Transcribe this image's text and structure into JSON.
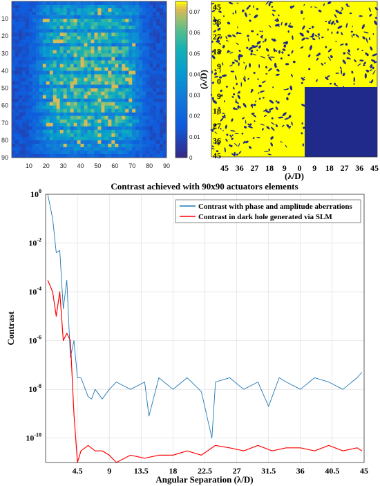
{
  "chart_data": [
    {
      "type": "heatmap",
      "title": "",
      "xlabel": "",
      "ylabel": "",
      "rows": 90,
      "cols": 90,
      "xticks": [
        "10",
        "20",
        "30",
        "40",
        "50",
        "60",
        "70",
        "80",
        "90"
      ],
      "yticks": [
        "10",
        "20",
        "30",
        "40",
        "50",
        "60",
        "70",
        "80",
        "90"
      ],
      "colorbar": {
        "ticks": [
          "0.07",
          "0.06",
          "0.05",
          "0.04",
          "0.03",
          "0.02",
          "0.01",
          "0"
        ],
        "range": [
          0,
          0.075
        ]
      },
      "colormap": "parula",
      "pattern": "bright band between columns ~15 and ~80 with alternating horizontal striations; values highest (~0.07) near center"
    },
    {
      "type": "heatmap",
      "title": "",
      "xlabel": "(λ/D)",
      "ylabel": "(λ/D)",
      "xticks": [
        "45",
        "36",
        "27",
        "18",
        "9",
        "0",
        "9",
        "18",
        "27",
        "36",
        "45"
      ],
      "yticks": [
        "45",
        "36",
        "27",
        "18",
        "9",
        "0",
        "9",
        "18",
        "27",
        "36",
        "45"
      ],
      "colors": {
        "high": "#ffff00",
        "low": "#1f2a8a"
      },
      "pattern": "binary speckle map; dark-hole (low) region occupies the lower-right quadrant"
    },
    {
      "type": "line",
      "title": "Contrast achieved with 90x90 actuators elements",
      "xlabel": "Angular Separation (λ/D)",
      "ylabel": "Contrast",
      "xlim": [
        0,
        45
      ],
      "ylim": [
        1e-11,
        1
      ],
      "yscale": "log",
      "grid": true,
      "legend_position": "top-right",
      "xticks": [
        "4.5",
        "9",
        "13.5",
        "18",
        "22.5",
        "27",
        "31.5",
        "36",
        "40.5",
        "45"
      ],
      "yticks": [
        "10^0",
        "10^-2",
        "10^-4",
        "10^-6",
        "10^-8",
        "10^-10"
      ],
      "series": [
        {
          "name": "Contrast with phase and amplitude aberrations",
          "color": "#1f77b4",
          "x": [
            0.3,
            1.0,
            1.5,
            2.0,
            2.5,
            3.0,
            3.5,
            4.0,
            4.5,
            5.0,
            6.0,
            6.5,
            7.0,
            8.0,
            9.0,
            10.0,
            12.0,
            14.0,
            14.6,
            16.0,
            18.0,
            20.0,
            22.0,
            23.5,
            24.0,
            26.0,
            28.0,
            30.0,
            31.5,
            33.0,
            34.0,
            36.0,
            38.0,
            40.0,
            42.0,
            44.0,
            44.7
          ],
          "y": [
            1.0,
            0.1,
            0.004,
            0.005,
            2e-05,
            0.0003,
            2e-07,
            1e-06,
            3e-08,
            3e-08,
            5e-09,
            4e-09,
            1e-08,
            4e-09,
            1e-08,
            2e-08,
            1e-08,
            2e-08,
            8e-10,
            3e-08,
            1e-08,
            3e-08,
            8e-09,
            1e-10,
            2e-08,
            3e-08,
            1e-08,
            2e-08,
            2e-09,
            3e-08,
            2e-08,
            1e-08,
            3e-08,
            2e-08,
            1e-08,
            3e-08,
            5e-08
          ]
        },
        {
          "name": "Contrast in dark hole generated via SLM",
          "color": "#ff0000",
          "x": [
            0.3,
            1.0,
            1.5,
            2.0,
            2.5,
            3.0,
            3.5,
            4.0,
            4.5,
            5.0,
            6.0,
            7.0,
            8.0,
            9.0,
            10.0,
            12.0,
            14.0,
            16.0,
            18.0,
            20.0,
            22.0,
            24.0,
            26.0,
            28.0,
            30.0,
            32.0,
            34.0,
            36.0,
            38.0,
            40.0,
            42.0,
            44.0,
            44.7
          ],
          "y": [
            0.0003,
            0.0001,
            1e-05,
            0.0001,
            1e-06,
            2e-06,
            1e-06,
            1e-09,
            1e-11,
            3e-11,
            5e-11,
            3e-11,
            3e-11,
            2e-11,
            1e-11,
            2e-11,
            1.5e-11,
            2e-11,
            2e-11,
            3e-11,
            2e-11,
            5e-11,
            4e-11,
            3e-11,
            5e-11,
            3e-11,
            4e-11,
            4e-11,
            3e-11,
            5e-11,
            3e-11,
            4e-11,
            3e-11
          ]
        }
      ]
    }
  ]
}
